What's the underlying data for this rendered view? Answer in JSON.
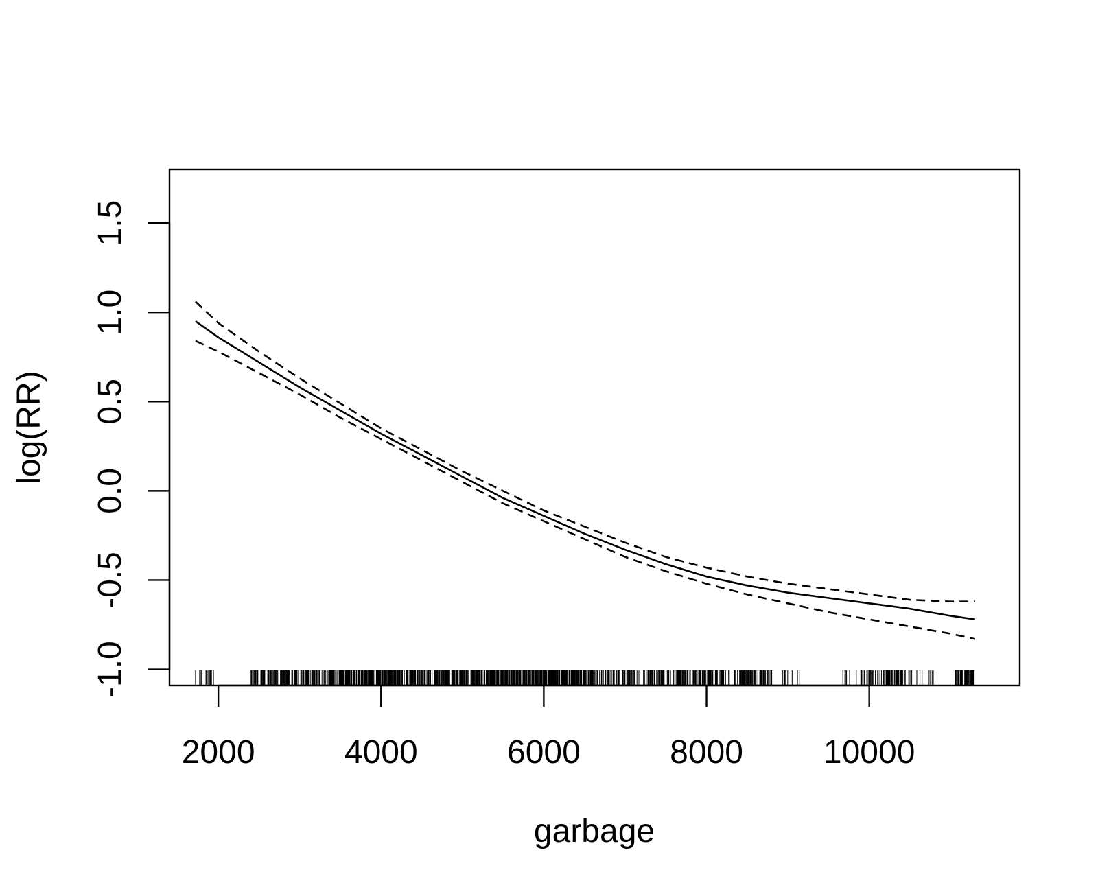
{
  "chart_data": {
    "type": "line",
    "title": "",
    "xlabel": "garbage",
    "ylabel": "log(RR)",
    "xlim": [
      1400,
      11850
    ],
    "ylim": [
      -1.09,
      1.8
    ],
    "x_ticks": [
      {
        "value": 2000,
        "label": "2000"
      },
      {
        "value": 4000,
        "label": "4000"
      },
      {
        "value": 6000,
        "label": "6000"
      },
      {
        "value": 8000,
        "label": "8000"
      },
      {
        "value": 10000,
        "label": "10000"
      }
    ],
    "y_ticks": [
      {
        "value": -1.0,
        "label": "-1.0"
      },
      {
        "value": -0.5,
        "label": "-0.5"
      },
      {
        "value": 0.0,
        "label": "0.0"
      },
      {
        "value": 0.5,
        "label": "0.5"
      },
      {
        "value": 1.0,
        "label": "1.0"
      },
      {
        "value": 1.5,
        "label": "1.5"
      }
    ],
    "x": [
      1720,
      2000,
      2500,
      3000,
      3500,
      4000,
      4500,
      5000,
      5500,
      6000,
      6500,
      7000,
      7500,
      8000,
      8500,
      9000,
      9500,
      10000,
      10500,
      11000,
      11300
    ],
    "series": [
      {
        "line_style": "solid",
        "values": [
          0.95,
          0.86,
          0.72,
          0.58,
          0.45,
          0.32,
          0.2,
          0.08,
          -0.04,
          -0.14,
          -0.24,
          -0.33,
          -0.41,
          -0.48,
          -0.53,
          -0.57,
          -0.6,
          -0.63,
          -0.66,
          -0.7,
          -0.72
        ]
      },
      {
        "line_style": "dashed",
        "values": [
          1.06,
          0.94,
          0.78,
          0.63,
          0.49,
          0.35,
          0.23,
          0.11,
          0.0,
          -0.11,
          -0.2,
          -0.29,
          -0.37,
          -0.43,
          -0.48,
          -0.52,
          -0.55,
          -0.58,
          -0.61,
          -0.62,
          -0.62
        ]
      },
      {
        "line_style": "dashed",
        "values": [
          0.84,
          0.78,
          0.66,
          0.54,
          0.41,
          0.29,
          0.17,
          0.05,
          -0.07,
          -0.17,
          -0.27,
          -0.37,
          -0.45,
          -0.52,
          -0.58,
          -0.63,
          -0.68,
          -0.72,
          -0.76,
          -0.8,
          -0.83
        ]
      }
    ],
    "rug_density": [
      {
        "from": 1720,
        "to": 1960,
        "per_1000": 60
      },
      {
        "from": 2400,
        "to": 3500,
        "per_1000": 140
      },
      {
        "from": 3500,
        "to": 6500,
        "per_1000": 230
      },
      {
        "from": 6500,
        "to": 8800,
        "per_1000": 130
      },
      {
        "from": 8800,
        "to": 9150,
        "per_1000": 40
      },
      {
        "from": 9650,
        "to": 9900,
        "per_1000": 30
      },
      {
        "from": 9900,
        "to": 10450,
        "per_1000": 110
      },
      {
        "from": 10450,
        "to": 10800,
        "per_1000": 30
      },
      {
        "from": 11050,
        "to": 11300,
        "per_1000": 160
      }
    ],
    "grid": false,
    "legend": "none"
  }
}
